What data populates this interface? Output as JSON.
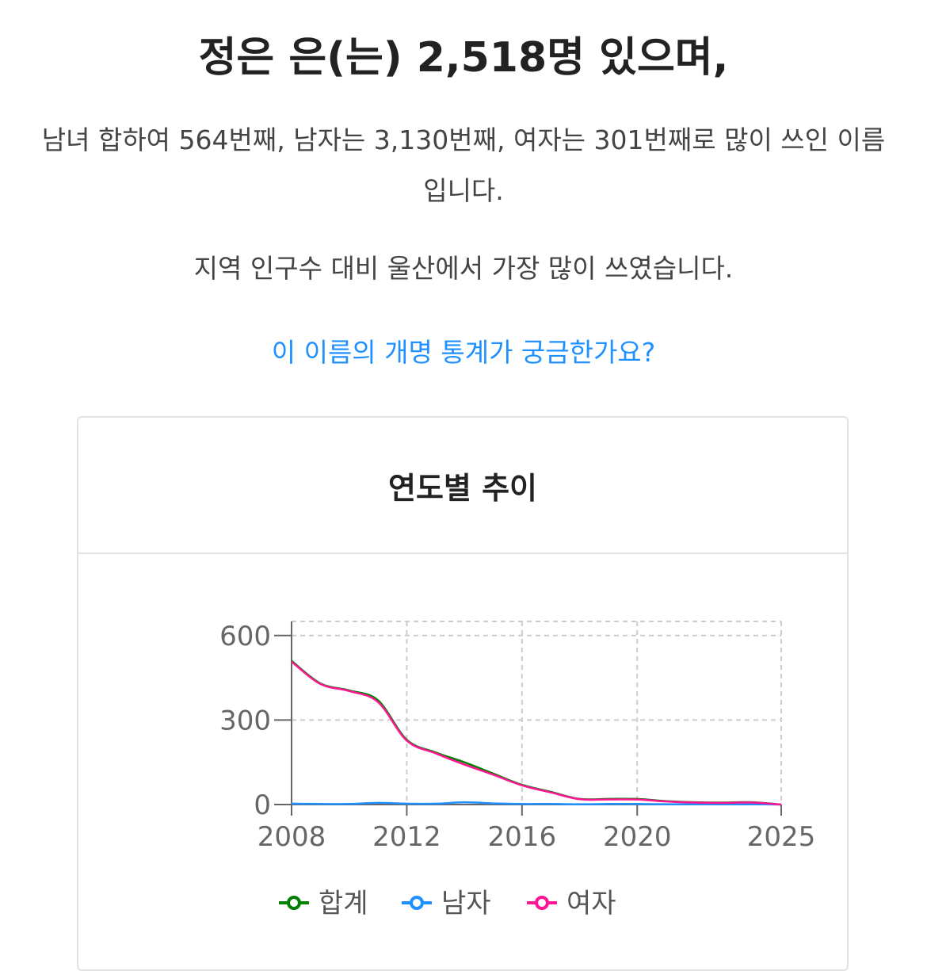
{
  "headline": "정은 은(는) 2,518명 있으며,",
  "description": "남녀 합하여 564번째, 남자는 3,130번째, 여자는 301번째로 많이 쓰인 이름입니다.",
  "region_text": "지역 인구수 대비 울산에서 가장 많이 쓰였습니다.",
  "rename_link": "이 이름의 개명 통계가 궁금한가요?",
  "card_title": "연도별 추이",
  "chart_data": {
    "type": "line",
    "x": [
      2008,
      2009,
      2010,
      2011,
      2012,
      2013,
      2014,
      2015,
      2016,
      2017,
      2018,
      2019,
      2020,
      2021,
      2022,
      2023,
      2024,
      2025
    ],
    "x_ticks": [
      2008,
      2012,
      2016,
      2020,
      2025
    ],
    "y_ticks": [
      0,
      300,
      600
    ],
    "ylim": [
      0,
      650
    ],
    "xlim": [
      2008,
      2025
    ],
    "grid": true,
    "legend_position": "bottom",
    "series": [
      {
        "name": "합계",
        "color": "#008000",
        "values": [
          510,
          430,
          405,
          370,
          230,
          185,
          150,
          110,
          70,
          45,
          20,
          20,
          20,
          12,
          8,
          7,
          8,
          0
        ]
      },
      {
        "name": "남자",
        "color": "#1e90ff",
        "values": [
          3,
          2,
          2,
          6,
          3,
          3,
          8,
          4,
          2,
          2,
          1,
          2,
          2,
          1,
          1,
          1,
          1,
          0
        ]
      },
      {
        "name": "여자",
        "color": "#ff1493",
        "values": [
          507,
          428,
          403,
          364,
          227,
          182,
          142,
          106,
          68,
          43,
          19,
          18,
          18,
          11,
          7,
          6,
          7,
          0
        ]
      }
    ]
  }
}
